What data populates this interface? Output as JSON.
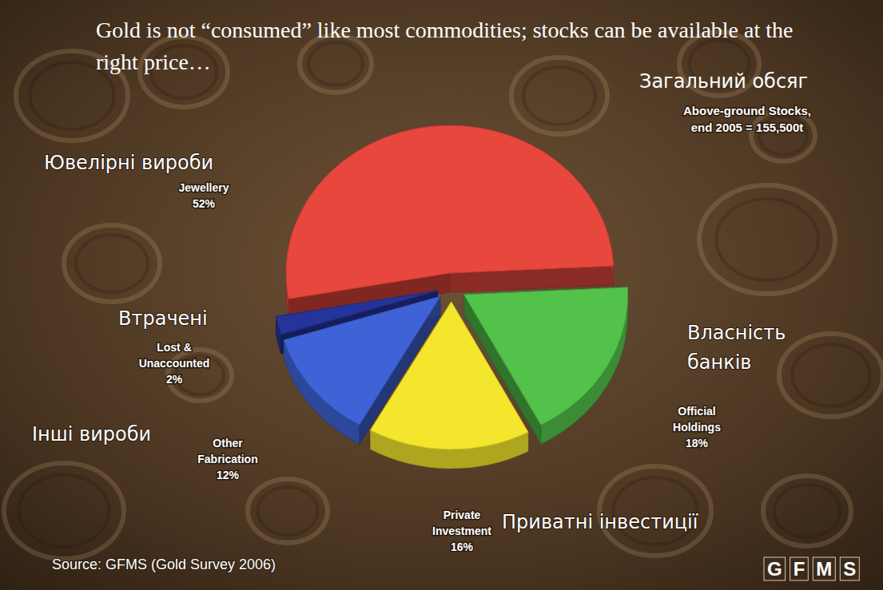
{
  "chart_data": {
    "type": "pie",
    "title": "Gold is not “consumed” like most commodities; stocks can be available at the right price…",
    "categories": [
      "Jewellery",
      "Official Holdings",
      "Private Investment",
      "Other Fabrication",
      "Lost & Unaccounted"
    ],
    "category_translations": [
      "Ювелірні вироби",
      "Власність банків",
      "Приватні інвестиції",
      "Інші вироби",
      "Втрачені"
    ],
    "values": [
      52,
      18,
      16,
      12,
      2
    ],
    "value_labels": [
      "52%",
      "18%",
      "16%",
      "12%",
      "2%"
    ],
    "colors": [
      "#e8473d",
      "#52c24a",
      "#f3e62c",
      "#3f63d6",
      "#24349a"
    ],
    "data_labels": true,
    "annotations": [
      "Загальний обсяг",
      "Above-ground Stocks, end 2005 = 155,500t"
    ],
    "source": "Source: GFMS (Gold Survey 2006)",
    "logo": "GFMS"
  }
}
